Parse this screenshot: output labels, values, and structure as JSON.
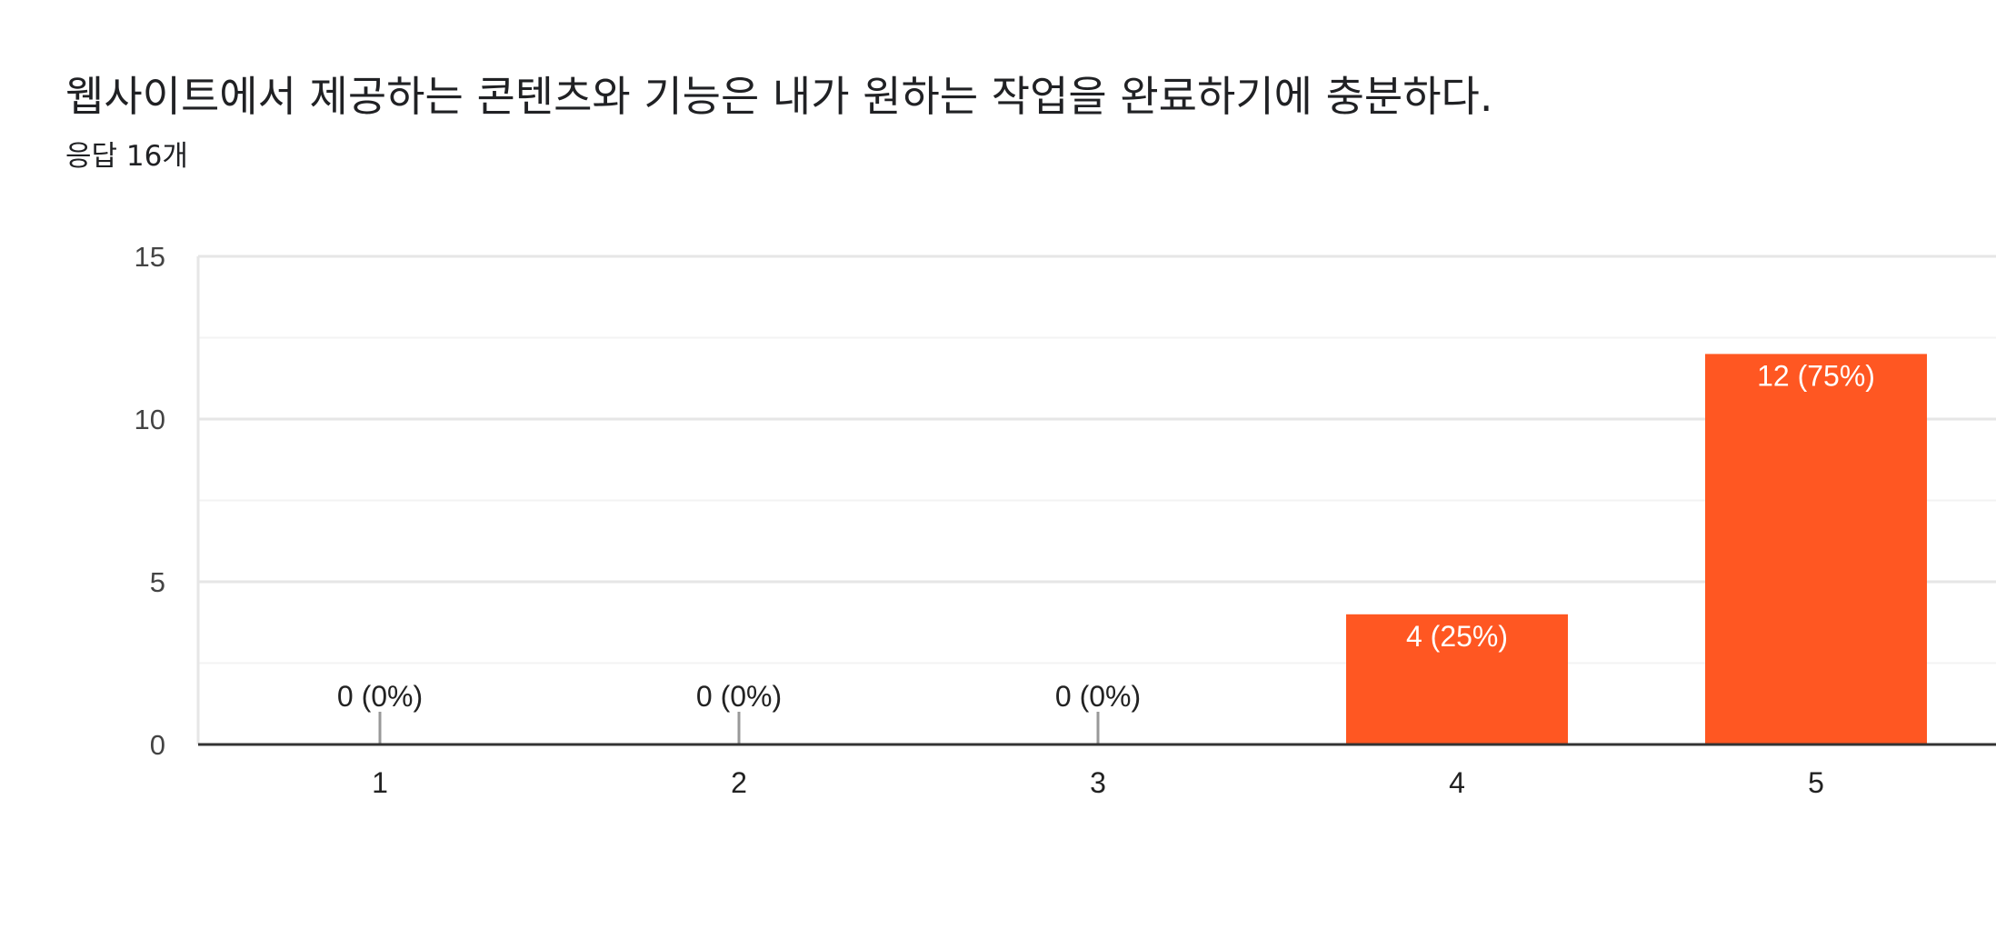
{
  "header": {
    "title": "웹사이트에서 제공하는 콘텐츠와 기능은 내가 원하는 작업을 완료하기에 충분하다.",
    "subtitle": "응답 16개"
  },
  "colors": {
    "bar": "#ff5722",
    "grid_major": "#e6e6e6",
    "grid_minor": "#f3f3f3",
    "axis": "#333333",
    "zero_stub": "#999999"
  },
  "chart_data": {
    "type": "bar",
    "categories": [
      "1",
      "2",
      "3",
      "4",
      "5"
    ],
    "values": [
      0,
      0,
      0,
      4,
      12
    ],
    "data_labels": [
      "0 (0%)",
      "0 (0%)",
      "0 (0%)",
      "4 (25%)",
      "12 (75%)"
    ],
    "ylim": [
      0,
      15
    ],
    "yticks": [
      "0",
      "5",
      "10",
      "15"
    ],
    "grid": true,
    "legend": "none"
  }
}
